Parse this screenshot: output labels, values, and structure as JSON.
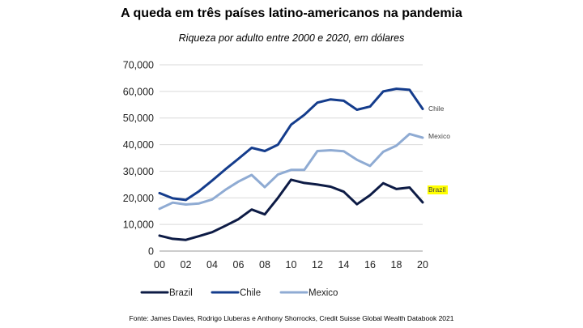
{
  "title": "A queda em três países latino-americanos na pandemia",
  "subtitle": "Riqueza por adulto entre 2000 e 2020, em dólares",
  "source": "Fonte: James Davies, Rodrigo Lluberas e Anthony Shorrocks, Credit Suisse Global Wealth Databook 2021",
  "chart_data": {
    "type": "line",
    "title": "A queda em três países latino-americanos na pandemia",
    "subtitle": "Riqueza por adulto entre 2000 e 2020, em dólares",
    "x": [
      2000,
      2001,
      2002,
      2003,
      2004,
      2005,
      2006,
      2007,
      2008,
      2009,
      2010,
      2011,
      2012,
      2013,
      2014,
      2015,
      2016,
      2017,
      2018,
      2019,
      2020
    ],
    "x_tick_labels": [
      "00",
      "02",
      "04",
      "06",
      "08",
      "10",
      "12",
      "14",
      "16",
      "18",
      "20"
    ],
    "x_tick_values": [
      2000,
      2002,
      2004,
      2006,
      2008,
      2010,
      2012,
      2014,
      2016,
      2018,
      2020
    ],
    "ylim": [
      0,
      70000
    ],
    "y_tick_labels": [
      "0",
      "10,000",
      "20,000",
      "30,000",
      "40,000",
      "50,000",
      "60,000",
      "70,000"
    ],
    "y_tick_values": [
      0,
      10000,
      20000,
      30000,
      40000,
      50000,
      60000,
      70000
    ],
    "grid": true,
    "legend_position": "bottom",
    "series": [
      {
        "name": "Brazil",
        "color": "#0d1b45",
        "end_label": "Brazil",
        "end_label_highlight": "#ffff00",
        "values": [
          5800,
          4600,
          4200,
          5600,
          7100,
          9500,
          12000,
          15600,
          13800,
          20000,
          26800,
          25600,
          25000,
          24200,
          22300,
          17600,
          21000,
          25500,
          23300,
          23900,
          18300
        ]
      },
      {
        "name": "Chile",
        "color": "#143c8c",
        "end_label": "Chile",
        "values": [
          21800,
          19800,
          19200,
          22500,
          26500,
          30700,
          34700,
          38800,
          37600,
          40000,
          47500,
          51200,
          55800,
          57000,
          56500,
          53100,
          54300,
          60000,
          61000,
          60600,
          53400
        ]
      },
      {
        "name": "Mexico",
        "color": "#8fabd3",
        "end_label": "Mexico",
        "values": [
          15900,
          18200,
          17500,
          17900,
          19400,
          23000,
          26100,
          28600,
          24000,
          28800,
          30500,
          30500,
          37600,
          37900,
          37500,
          34300,
          32000,
          37300,
          39600,
          44000,
          42600
        ]
      }
    ]
  }
}
